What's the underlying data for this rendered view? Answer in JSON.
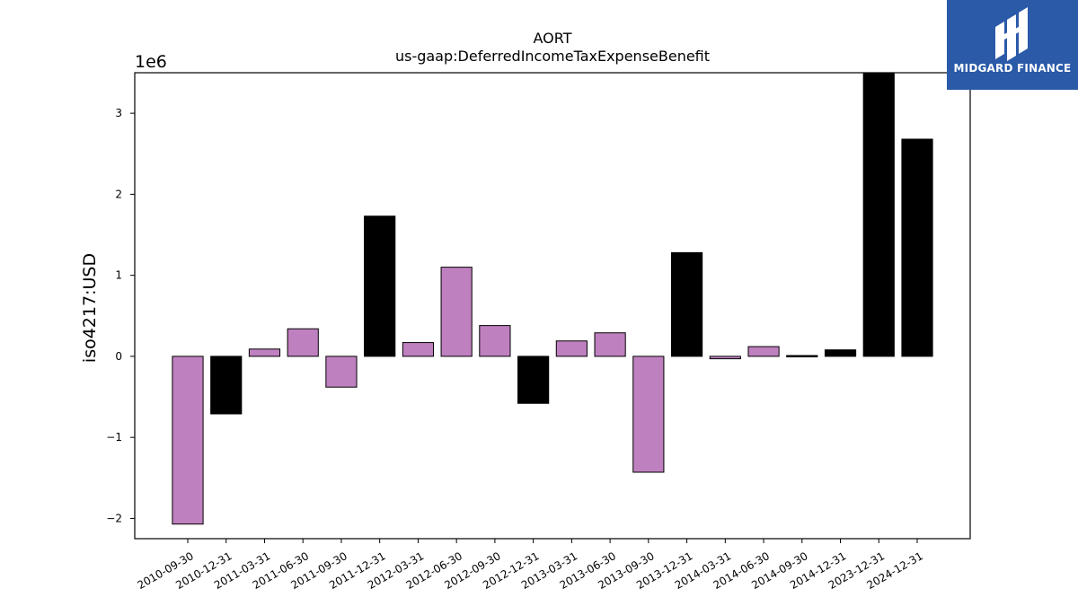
{
  "brand": {
    "name": "MIDGARD FINANCE"
  },
  "colors": {
    "positive_bar": "#000000",
    "negative_bar": "#bf80bf",
    "edge": "#000000"
  },
  "chart_data": {
    "type": "bar",
    "title": "AORT",
    "subtitle": "us-gaap:DeferredIncomeTaxExpenseBenefit",
    "ylabel": "iso4217:USD",
    "scale_label": "1e6",
    "ylim": [
      -2250000,
      3500000
    ],
    "yticks": [
      -2000000,
      -1000000,
      0,
      1000000,
      2000000,
      3000000
    ],
    "ytick_labels": [
      "−2",
      "−1",
      "0",
      "1",
      "2",
      "3"
    ],
    "grid": false,
    "categories": [
      "2010-09-30",
      "2010-12-31",
      "2011-03-31",
      "2011-06-30",
      "2011-09-30",
      "2011-12-31",
      "2012-03-31",
      "2012-06-30",
      "2012-09-30",
      "2012-12-31",
      "2013-03-31",
      "2013-06-30",
      "2013-09-30",
      "2013-12-31",
      "2014-03-31",
      "2014-06-30",
      "2014-09-30",
      "2014-12-31",
      "2023-12-31",
      "2024-12-31"
    ],
    "values": [
      -2070000,
      -710000,
      90000,
      340000,
      -380000,
      1730000,
      170000,
      1100000,
      380000,
      -580000,
      190000,
      290000,
      -1430000,
      1280000,
      -30000,
      120000,
      10000,
      80000,
      3500000,
      2680000
    ],
    "bar_colors": [
      "#bf80bf",
      "#000000",
      "#bf80bf",
      "#bf80bf",
      "#bf80bf",
      "#000000",
      "#bf80bf",
      "#bf80bf",
      "#bf80bf",
      "#000000",
      "#bf80bf",
      "#bf80bf",
      "#bf80bf",
      "#000000",
      "#bf80bf",
      "#bf80bf",
      "#000000",
      "#000000",
      "#000000",
      "#000000"
    ]
  }
}
